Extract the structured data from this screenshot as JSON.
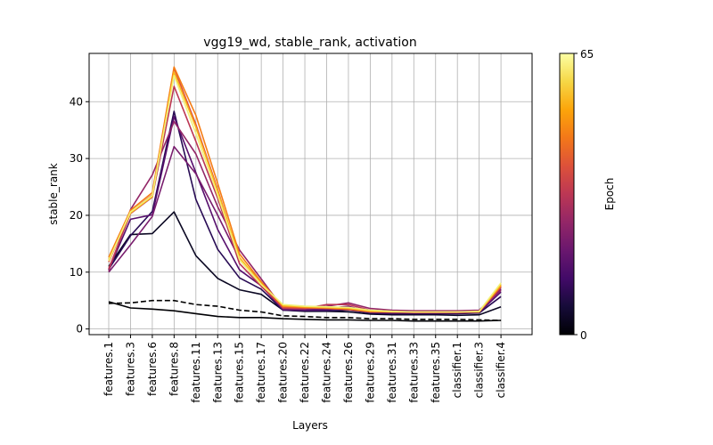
{
  "chart_data": {
    "type": "line",
    "title": "vgg19_wd, stable_rank, activation",
    "xlabel": "Layers",
    "ylabel": "stable_rank",
    "ylim": [
      -1,
      48.5
    ],
    "yticks": [
      0,
      10,
      20,
      30,
      40
    ],
    "grid": true,
    "categories": [
      "features.1",
      "features.3",
      "features.6",
      "features.8",
      "features.11",
      "features.13",
      "features.15",
      "features.17",
      "features.20",
      "features.22",
      "features.24",
      "features.26",
      "features.29",
      "features.31",
      "features.33",
      "features.35",
      "classifier.1",
      "classifier.3",
      "classifier.4"
    ],
    "colorbar": {
      "label": "Epoch",
      "min_label": "0",
      "max_label": "65"
    },
    "series": [
      {
        "epoch_fraction": 0.0,
        "dashed": true,
        "color": "#000000",
        "values": [
          4.5,
          4.6,
          5.0,
          5.0,
          4.3,
          4.0,
          3.3,
          3.0,
          2.3,
          2.2,
          2.0,
          2.0,
          1.8,
          1.8,
          1.7,
          1.7,
          1.7,
          1.6,
          1.5
        ]
      },
      {
        "epoch_fraction": 0.0,
        "dashed": false,
        "color": "#000004",
        "values": [
          4.8,
          3.7,
          3.5,
          3.2,
          2.7,
          2.2,
          2.0,
          2.0,
          1.8,
          1.7,
          1.6,
          1.6,
          1.5,
          1.5,
          1.4,
          1.4,
          1.4,
          1.4,
          1.5
        ]
      },
      {
        "epoch_fraction": 0.06,
        "dashed": false,
        "color": "#0a0722",
        "values": [
          11.0,
          16.6,
          16.8,
          20.6,
          12.9,
          8.9,
          6.9,
          6.1,
          3.3,
          3.1,
          3.1,
          3.0,
          2.6,
          2.5,
          2.5,
          2.5,
          2.4,
          2.5,
          3.9
        ]
      },
      {
        "epoch_fraction": 0.15,
        "dashed": false,
        "color": "#280b54",
        "values": [
          10.5,
          16.4,
          20.7,
          38.3,
          22.8,
          14.0,
          9.0,
          7.0,
          3.3,
          3.2,
          3.2,
          3.3,
          2.8,
          2.7,
          2.7,
          2.7,
          2.7,
          2.8,
          5.7
        ]
      },
      {
        "epoch_fraction": 0.28,
        "dashed": false,
        "color": "#570f6d",
        "values": [
          10.4,
          19.3,
          20.1,
          37.4,
          27.5,
          17.5,
          10.4,
          7.6,
          3.4,
          3.3,
          3.4,
          3.6,
          2.9,
          2.8,
          2.8,
          2.8,
          2.8,
          2.9,
          6.5
        ]
      },
      {
        "epoch_fraction": 0.38,
        "dashed": false,
        "color": "#781c6d",
        "values": [
          10.0,
          14.8,
          19.8,
          32.1,
          27.3,
          20.0,
          12.3,
          8.3,
          3.5,
          3.5,
          3.6,
          4.0,
          3.0,
          2.9,
          2.9,
          2.9,
          3.0,
          3.0,
          7.0
        ]
      },
      {
        "epoch_fraction": 0.48,
        "dashed": false,
        "color": "#932667",
        "values": [
          10.2,
          21.0,
          27.1,
          36.5,
          30.8,
          21.5,
          13.9,
          8.8,
          3.6,
          3.5,
          4.0,
          4.6,
          3.6,
          3.3,
          3.2,
          3.2,
          3.2,
          3.3,
          6.8
        ]
      },
      {
        "epoch_fraction": 0.6,
        "dashed": false,
        "color": "#bc3754",
        "values": [
          10.6,
          20.3,
          23.2,
          42.7,
          33.0,
          23.0,
          11.5,
          7.5,
          3.7,
          3.6,
          4.3,
          4.3,
          3.3,
          3.1,
          3.0,
          3.0,
          3.0,
          3.1,
          7.3
        ]
      },
      {
        "epoch_fraction": 0.72,
        "dashed": false,
        "color": "#dd513a",
        "values": [
          11.8,
          20.6,
          23.6,
          45.9,
          36.0,
          24.5,
          12.2,
          7.8,
          3.8,
          3.7,
          3.6,
          3.4,
          3.0,
          3.0,
          2.9,
          2.9,
          2.9,
          3.0,
          7.5
        ]
      },
      {
        "epoch_fraction": 0.84,
        "dashed": false,
        "color": "#f57d15",
        "values": [
          12.6,
          20.9,
          24.0,
          46.1,
          37.6,
          25.6,
          13.2,
          8.3,
          4.0,
          3.8,
          3.7,
          3.6,
          3.2,
          3.1,
          3.0,
          3.0,
          3.0,
          3.1,
          7.6
        ]
      },
      {
        "epoch_fraction": 0.93,
        "dashed": false,
        "color": "#fbb61a",
        "values": [
          12.2,
          20.4,
          23.3,
          45.2,
          35.5,
          24.2,
          12.6,
          8.0,
          4.1,
          3.9,
          3.8,
          3.6,
          3.1,
          3.0,
          3.0,
          3.0,
          3.0,
          3.0,
          7.8
        ]
      },
      {
        "epoch_fraction": 1.0,
        "dashed": false,
        "color": "#f1f179",
        "values": [
          12.0,
          20.6,
          23.5,
          44.6,
          34.4,
          23.5,
          12.2,
          7.8,
          4.3,
          4.0,
          3.9,
          3.8,
          3.3,
          3.1,
          3.0,
          3.0,
          3.0,
          3.1,
          8.1
        ]
      }
    ]
  }
}
